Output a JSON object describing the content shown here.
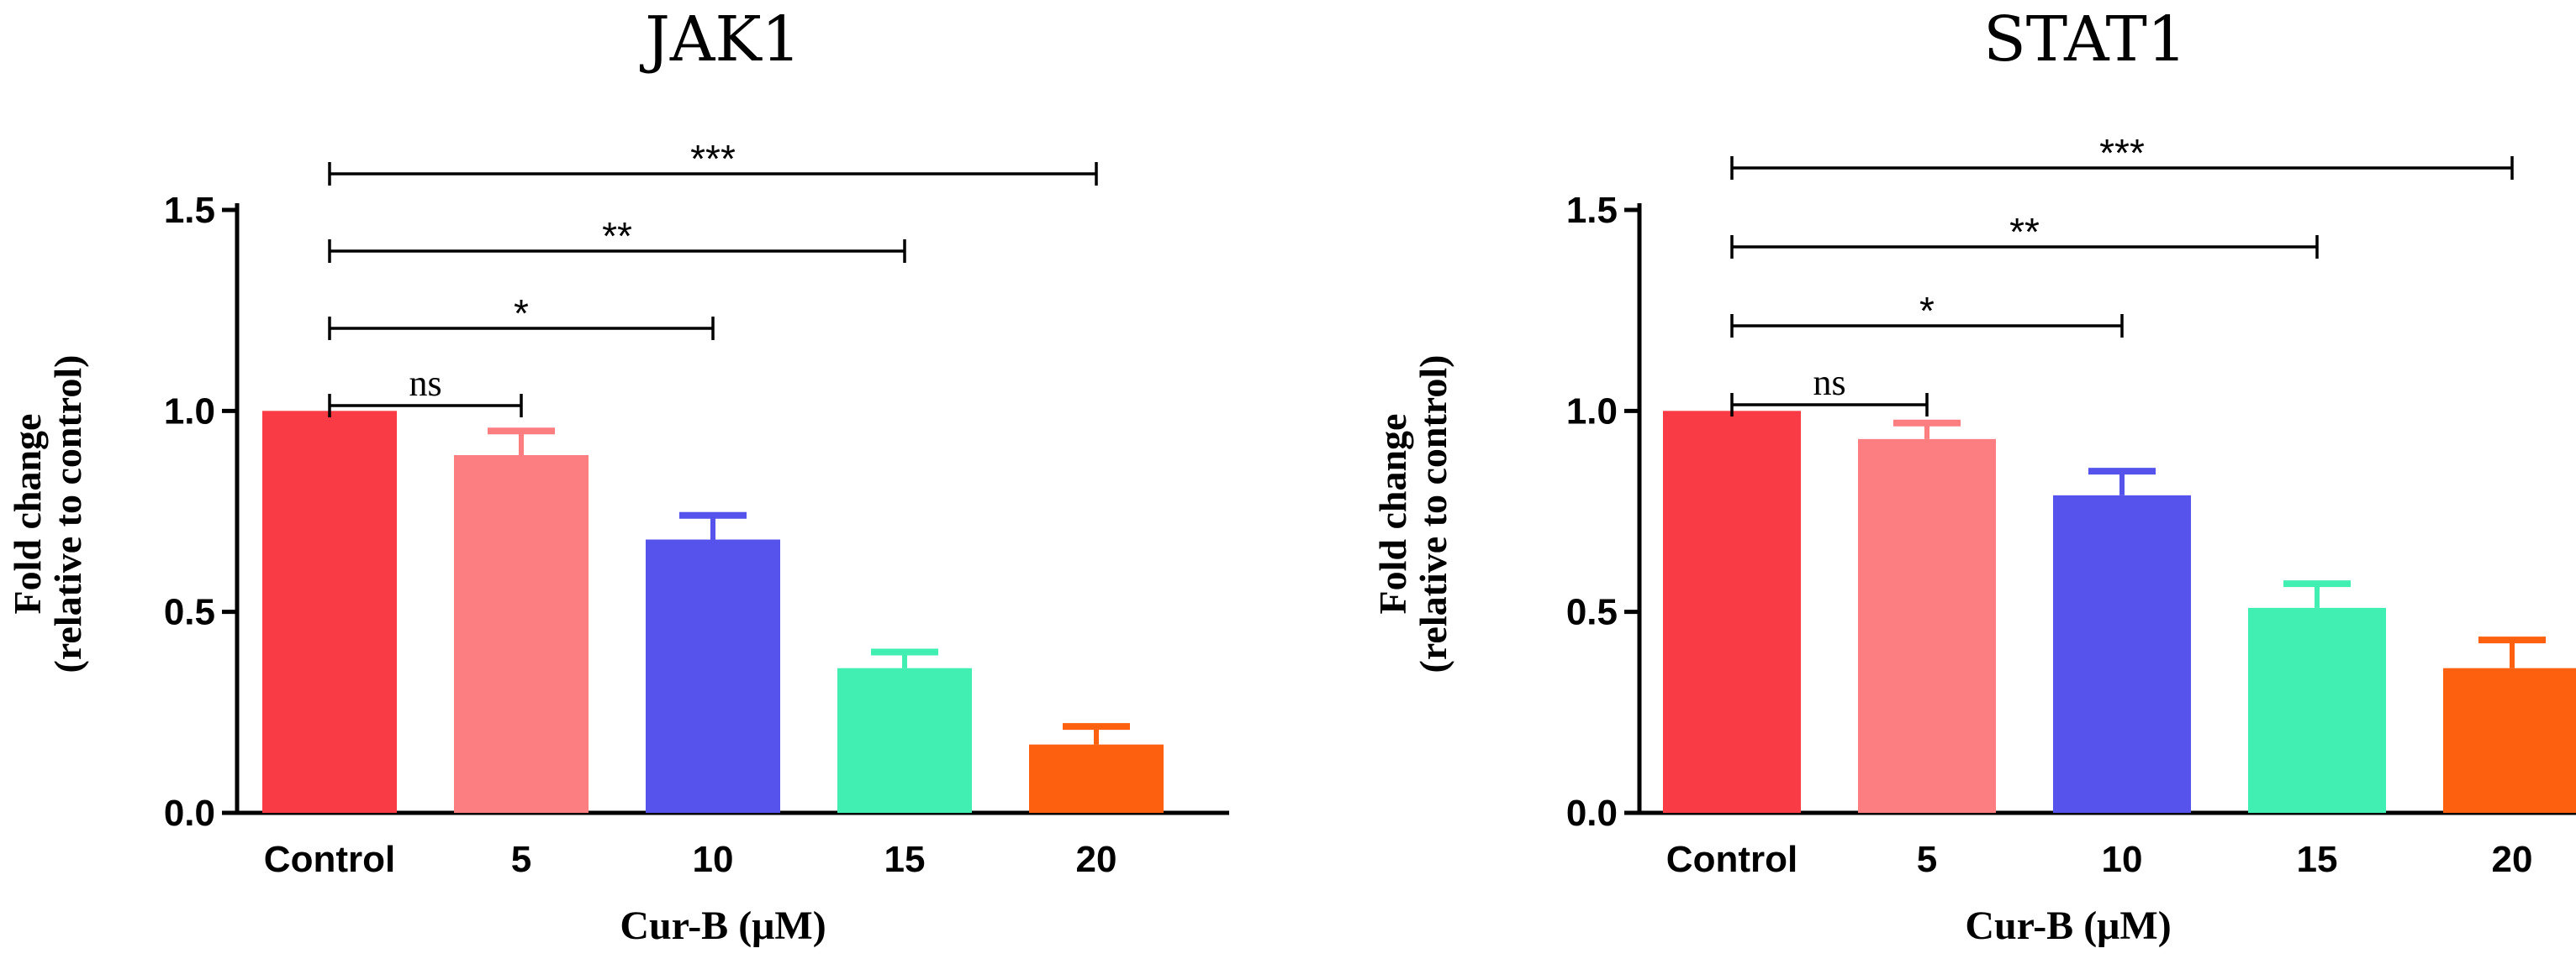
{
  "chart_data": [
    {
      "type": "bar",
      "title": "JAK1",
      "ylabel_line1": "Fold change",
      "ylabel_line2": "(relative to control)",
      "xlabel": "Cur-B (μM)",
      "categories": [
        "Control",
        "5",
        "10",
        "15",
        "20"
      ],
      "values": [
        1.0,
        0.89,
        0.68,
        0.36,
        0.17
      ],
      "errors": [
        0.0,
        0.06,
        0.06,
        0.04,
        0.045
      ],
      "colors": [
        "#f83b45",
        "#fc7e81",
        "#5553ec",
        "#42efb2",
        "#fd6110"
      ],
      "ylim": [
        0,
        1.5
      ],
      "yticks": [
        0.0,
        0.5,
        1.0,
        1.5
      ],
      "ytick_labels": [
        "0.0",
        "0.5",
        "1.0",
        "1.5"
      ],
      "significance": [
        {
          "from": "Control",
          "to": "5",
          "label": "ns"
        },
        {
          "from": "Control",
          "to": "10",
          "label": "*"
        },
        {
          "from": "Control",
          "to": "15",
          "label": "**"
        },
        {
          "from": "Control",
          "to": "20",
          "label": "***"
        }
      ]
    },
    {
      "type": "bar",
      "title": "STAT1",
      "ylabel_line1": "Fold change",
      "ylabel_line2": "(relative to control)",
      "xlabel": "Cur-B (μM)",
      "categories": [
        "Control",
        "5",
        "10",
        "15",
        "20"
      ],
      "values": [
        1.0,
        0.93,
        0.79,
        0.51,
        0.36
      ],
      "errors": [
        0.0,
        0.04,
        0.06,
        0.06,
        0.07
      ],
      "colors": [
        "#f83b45",
        "#fc7e81",
        "#5553ec",
        "#42efb2",
        "#fd6110"
      ],
      "ylim": [
        0,
        1.5
      ],
      "yticks": [
        0.0,
        0.5,
        1.0,
        1.5
      ],
      "ytick_labels": [
        "0.0",
        "0.5",
        "1.0",
        "1.5"
      ],
      "significance": [
        {
          "from": "Control",
          "to": "5",
          "label": "ns"
        },
        {
          "from": "Control",
          "to": "10",
          "label": "*"
        },
        {
          "from": "Control",
          "to": "15",
          "label": "**"
        },
        {
          "from": "Control",
          "to": "20",
          "label": "***"
        }
      ]
    }
  ]
}
